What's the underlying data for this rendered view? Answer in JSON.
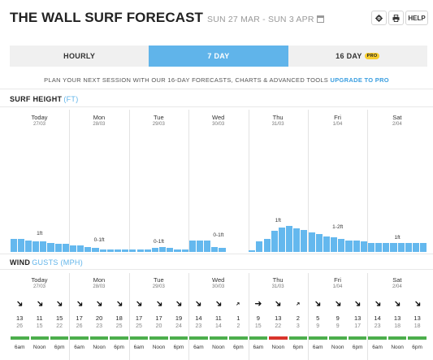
{
  "header": {
    "title": "THE WALL SURF FORECAST",
    "dates": "SUN 27 MAR - SUN 3 APR",
    "settings_icon": "gear-icon",
    "print_icon": "print-icon",
    "help_label": "HELP"
  },
  "tabs": [
    {
      "label": "HOURLY"
    },
    {
      "label": "7 DAY",
      "active": true
    },
    {
      "label": "16 DAY",
      "badge": "PRO"
    }
  ],
  "promo": {
    "text": "PLAN YOUR NEXT SESSION WITH OUR 16-DAY FORECASTS, CHARTS & ADVANCED TOOLS",
    "link": "UPGRADE TO PRO"
  },
  "surf": {
    "title": "SURF HEIGHT",
    "unit": "(FT)",
    "color": "#64b8ee",
    "days": [
      {
        "name": "Today",
        "date": "27/03",
        "label": "1ft"
      },
      {
        "name": "Mon",
        "date": "28/03",
        "label": "0-1ft"
      },
      {
        "name": "Tue",
        "date": "29/03",
        "label": "0-1ft"
      },
      {
        "name": "Wed",
        "date": "30/03",
        "label": "0-1ft"
      },
      {
        "name": "Thu",
        "date": "31/03",
        "label": "1ft"
      },
      {
        "name": "Fri",
        "date": "1/04",
        "label": "1-2ft"
      },
      {
        "name": "Sat",
        "date": "2/04",
        "label": "1ft"
      }
    ]
  },
  "wind": {
    "title": "WIND",
    "sub": "GUSTS (MPH)",
    "days": [
      {
        "name": "Today",
        "date": "27/03",
        "slots": [
          {
            "time": "6am",
            "speed": "13",
            "gust": "26",
            "dir": 135,
            "rating": "#4cae4c"
          },
          {
            "time": "Noon",
            "speed": "11",
            "gust": "15",
            "dir": 135,
            "rating": "#4cae4c"
          },
          {
            "time": "6pm",
            "speed": "15",
            "gust": "22",
            "dir": 135,
            "rating": "#4cae4c"
          }
        ]
      },
      {
        "name": "Mon",
        "date": "28/03",
        "slots": [
          {
            "time": "6am",
            "speed": "17",
            "gust": "26",
            "dir": 135,
            "rating": "#4cae4c"
          },
          {
            "time": "Noon",
            "speed": "20",
            "gust": "23",
            "dir": 135,
            "rating": "#4cae4c"
          },
          {
            "time": "6pm",
            "speed": "18",
            "gust": "25",
            "dir": 135,
            "rating": "#4cae4c"
          }
        ]
      },
      {
        "name": "Tue",
        "date": "29/03",
        "slots": [
          {
            "time": "6am",
            "speed": "17",
            "gust": "25",
            "dir": 135,
            "rating": "#4cae4c"
          },
          {
            "time": "Noon",
            "speed": "17",
            "gust": "20",
            "dir": 135,
            "rating": "#4cae4c"
          },
          {
            "time": "6pm",
            "speed": "19",
            "gust": "24",
            "dir": 135,
            "rating": "#4cae4c"
          }
        ]
      },
      {
        "name": "Wed",
        "date": "30/03",
        "slots": [
          {
            "time": "6am",
            "speed": "14",
            "gust": "23",
            "dir": 135,
            "rating": "#4cae4c"
          },
          {
            "time": "Noon",
            "speed": "11",
            "gust": "14",
            "dir": 135,
            "rating": "#4cae4c"
          },
          {
            "time": "6pm",
            "speed": "1",
            "gust": "2",
            "dir": 45,
            "rating": "#4cae4c"
          }
        ]
      },
      {
        "name": "Thu",
        "date": "31/03",
        "slots": [
          {
            "time": "6am",
            "speed": "9",
            "gust": "15",
            "dir": 90,
            "rating": "#4cae4c"
          },
          {
            "time": "Noon",
            "speed": "13",
            "gust": "22",
            "dir": 135,
            "rating": "#d9342b"
          },
          {
            "time": "6pm",
            "speed": "2",
            "gust": "3",
            "dir": 45,
            "rating": "#4cae4c"
          }
        ]
      },
      {
        "name": "Fri",
        "date": "1/04",
        "slots": [
          {
            "time": "6am",
            "speed": "5",
            "gust": "9",
            "dir": 135,
            "rating": "#4cae4c"
          },
          {
            "time": "Noon",
            "speed": "9",
            "gust": "9",
            "dir": 135,
            "rating": "#4cae4c"
          },
          {
            "time": "6pm",
            "speed": "13",
            "gust": "17",
            "dir": 135,
            "rating": "#4cae4c"
          }
        ]
      },
      {
        "name": "Sat",
        "date": "2/04",
        "slots": [
          {
            "time": "6am",
            "speed": "14",
            "gust": "23",
            "dir": 135,
            "rating": "#4cae4c"
          },
          {
            "time": "Noon",
            "speed": "13",
            "gust": "18",
            "dir": 135,
            "rating": "#4cae4c"
          },
          {
            "time": "6pm",
            "speed": "13",
            "gust": "18",
            "dir": 135,
            "rating": "#4cae4c"
          }
        ]
      }
    ]
  },
  "surf_bars": [
    [
      0.5,
      0.5,
      0.45,
      0.4,
      0.4,
      0.35,
      0.3,
      0.3
    ],
    [
      0.25,
      0.25,
      0.2,
      0.15,
      0.1,
      0.1,
      0.1,
      0.1
    ],
    [
      0.1,
      0.1,
      0.1,
      0.15,
      0.2,
      0.15,
      0.1,
      0.1
    ],
    [
      0.45,
      0.45,
      0.45,
      0.2,
      0.15,
      0,
      0,
      0
    ],
    [
      0.05,
      0.4,
      0.5,
      0.8,
      0.95,
      1.0,
      0.9,
      0.85
    ],
    [
      0.75,
      0.7,
      0.6,
      0.55,
      0.5,
      0.45,
      0.45,
      0.4
    ],
    [
      0.35,
      0.35,
      0.35,
      0.35,
      0.35,
      0.35,
      0.35,
      0.35
    ]
  ]
}
